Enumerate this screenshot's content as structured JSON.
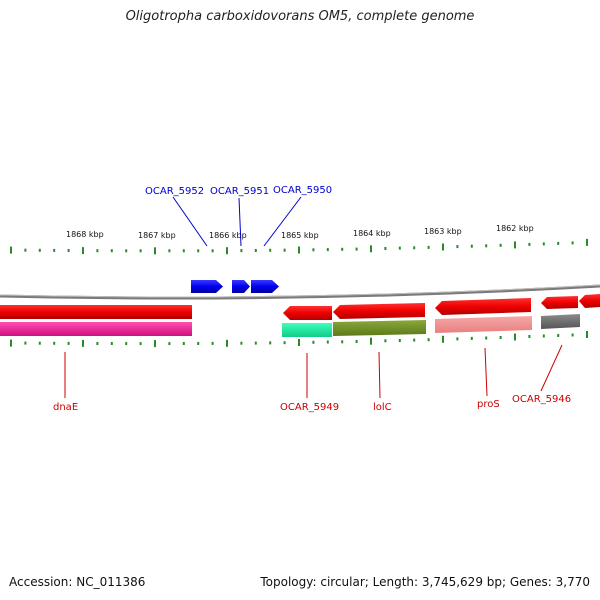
{
  "title": "Oligotropha carboxidovorans OM5, complete genome",
  "footer": {
    "accession": "Accession: NC_011386",
    "topology": "Topology: circular; Length: 3,745,629 bp; Genes: 3,770"
  },
  "scale_labels": [
    "1868 kbp",
    "1867 kbp",
    "1866 kbp",
    "1865 kbp",
    "1864 kbp",
    "1863 kbp",
    "1862 kbp"
  ],
  "top_gene_labels": [
    "OCAR_5952",
    "OCAR_5951",
    "OCAR_5950"
  ],
  "bottom_gene_labels": [
    "dnaE",
    "OCAR_5949",
    "lolC",
    "proS",
    "OCAR_5946"
  ],
  "colors": {
    "forward_gene": "#0000ee",
    "reverse_gene": "#ee0000",
    "tick": "#2a8a2a",
    "backbone": "#808080",
    "top_label": "#0000cc",
    "bottom_label": "#cc0000"
  },
  "icons": [
    "gene-arrow-forward",
    "gene-arrow-reverse",
    "feature-bar"
  ]
}
